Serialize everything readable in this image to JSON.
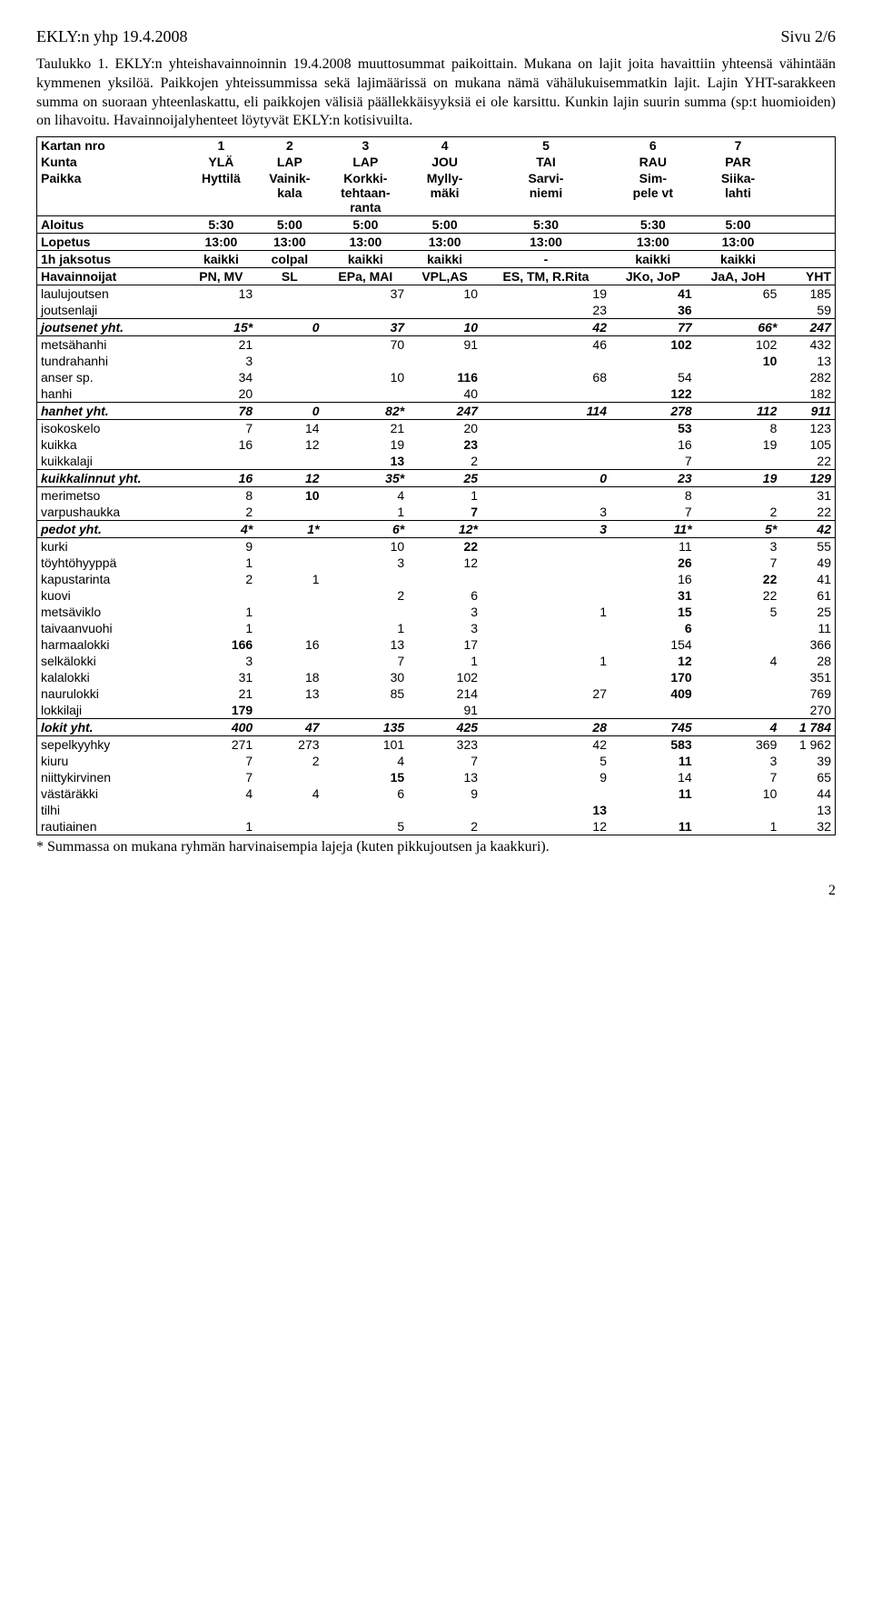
{
  "header": {
    "left": "EKLY:n yhp 19.4.2008",
    "right": "Sivu 2/6"
  },
  "caption": "Taulukko 1. EKLY:n yhteishavainnoinnin 19.4.2008 muuttosummat paikoittain. Mukana on lajit joita havaittiin yhteensä vähintään kymmenen yksilöä. Paikkojen yhteissummissa sekä lajimäärissä on mukana nämä vähälukuisemmatkin lajit. Lajin YHT-sarakkeen summa on suoraan yhteenlaskattu, eli paikkojen välisiä päällekkäisyyksiä ei ole karsittu. Kunkin lajin suurin summa (sp:t huomioiden) on lihavoitu. Havainnoijalyhenteet löytyvät EKLY:n kotisivuilta.",
  "rows": {
    "kartan": {
      "label": "Kartan nro",
      "v": [
        "1",
        "2",
        "3",
        "4",
        "5",
        "6",
        "7"
      ]
    },
    "kunta": {
      "label": "Kunta",
      "v": [
        "YLÄ",
        "LAP",
        "LAP",
        "JOU",
        "TAI",
        "RAU",
        "PAR"
      ]
    },
    "paikka": {
      "label": "Paikka",
      "v": [
        "Hyttilä",
        "Vainik-\nkala",
        "Korkki-\ntehtaan-\nranta",
        "Mylly-\nmäki",
        "Sarvi-\nniemi",
        "Sim-\npele vt",
        "Siika-\nlahti"
      ]
    },
    "aloitus": {
      "label": "Aloitus",
      "v": [
        "5:30",
        "5:00",
        "5:00",
        "5:00",
        "5:30",
        "5:30",
        "5:00"
      ]
    },
    "lopetus": {
      "label": "Lopetus",
      "v": [
        "13:00",
        "13:00",
        "13:00",
        "13:00",
        "13:00",
        "13:00",
        "13:00"
      ]
    },
    "jaksotus": {
      "label": "1h jaksotus",
      "v": [
        "kaikki",
        "colpal",
        "kaikki",
        "kaikki",
        "-",
        "kaikki",
        "kaikki"
      ]
    },
    "hav": {
      "label": "Havainnoijat",
      "v": [
        "PN, MV",
        "SL",
        "EPa, MAI",
        "VPL,AS",
        "ES, TM, R.Rita",
        "JKo, JoP",
        "JaA, JoH"
      ],
      "yht": "YHT"
    }
  },
  "data": [
    {
      "l": "laulujoutsen",
      "b": 5,
      "v": [
        "13",
        "",
        "37",
        "10",
        "19",
        "41",
        "65"
      ],
      "y": "185"
    },
    {
      "l": "joutsenlaji",
      "b": 5,
      "v": [
        "",
        "",
        "",
        "",
        "23",
        "36",
        ""
      ],
      "y": "59"
    },
    {
      "l": "joutsenet yht.",
      "sum": true,
      "v": [
        "15*",
        "0",
        "37",
        "10",
        "42",
        "77",
        "66*"
      ],
      "y": "247"
    },
    {
      "l": "metsähanhi",
      "b": 5,
      "v": [
        "21",
        "",
        "70",
        "91",
        "46",
        "102",
        "102"
      ],
      "y": "432"
    },
    {
      "l": "tundrahanhi",
      "b": 6,
      "v": [
        "3",
        "",
        "",
        "",
        "",
        "",
        "10"
      ],
      "y": "13"
    },
    {
      "l": "anser sp.",
      "b": 3,
      "v": [
        "34",
        "",
        "10",
        "116",
        "68",
        "54",
        ""
      ],
      "y": "282"
    },
    {
      "l": "hanhi",
      "b": 5,
      "v": [
        "20",
        "",
        "",
        "40",
        "",
        "122",
        ""
      ],
      "y": "182"
    },
    {
      "l": "hanhet yht.",
      "sum": true,
      "v": [
        "78",
        "0",
        "82*",
        "247",
        "114",
        "278",
        "112"
      ],
      "y": "911"
    },
    {
      "l": "isokoskelo",
      "b": 5,
      "v": [
        "7",
        "14",
        "21",
        "20",
        "",
        "53",
        "8"
      ],
      "y": "123"
    },
    {
      "l": "kuikka",
      "b": 3,
      "v": [
        "16",
        "12",
        "19",
        "23",
        "",
        "16",
        "19"
      ],
      "y": "105"
    },
    {
      "l": "kuikkalaji",
      "b": 2,
      "v": [
        "",
        "",
        "13",
        "2",
        "",
        "7",
        ""
      ],
      "y": "22"
    },
    {
      "l": "kuikkalinnut yht.",
      "sum": true,
      "v": [
        "16",
        "12",
        "35*",
        "25",
        "0",
        "23",
        "19"
      ],
      "y": "129"
    },
    {
      "l": "merimetso",
      "b": 1,
      "v": [
        "8",
        "10",
        "4",
        "1",
        "",
        "8",
        ""
      ],
      "y": "31"
    },
    {
      "l": "varpushaukka",
      "b": 3,
      "v": [
        "2",
        "",
        "1",
        "7",
        "3",
        "7",
        "2"
      ],
      "y": "22"
    },
    {
      "l": "pedot yht.",
      "sum": true,
      "v": [
        "4*",
        "1*",
        "6*",
        "12*",
        "3",
        "11*",
        "5*"
      ],
      "y": "42"
    },
    {
      "l": "kurki",
      "b": 3,
      "v": [
        "9",
        "",
        "10",
        "22",
        "",
        "11",
        "3"
      ],
      "y": "55"
    },
    {
      "l": "töyhtöhyyppä",
      "b": 5,
      "v": [
        "1",
        "",
        "3",
        "12",
        "",
        "26",
        "7"
      ],
      "y": "49"
    },
    {
      "l": "kapustarinta",
      "b": 6,
      "v": [
        "2",
        "1",
        "",
        "",
        "",
        "16",
        "22"
      ],
      "y": "41"
    },
    {
      "l": "kuovi",
      "b": 5,
      "v": [
        "",
        "",
        "2",
        "6",
        "",
        "31",
        "22"
      ],
      "y": "61"
    },
    {
      "l": "metsäviklo",
      "b": 5,
      "v": [
        "1",
        "",
        "",
        "3",
        "1",
        "15",
        "5"
      ],
      "y": "25"
    },
    {
      "l": "taivaanvuohi",
      "b": 5,
      "v": [
        "1",
        "",
        "1",
        "3",
        "",
        "6",
        ""
      ],
      "y": "11"
    },
    {
      "l": "harmaalokki",
      "b": 0,
      "v": [
        "166",
        "16",
        "13",
        "17",
        "",
        "154",
        ""
      ],
      "y": "366"
    },
    {
      "l": "selkälokki",
      "b": 5,
      "v": [
        "3",
        "",
        "7",
        "1",
        "1",
        "12",
        "4"
      ],
      "y": "28"
    },
    {
      "l": "kalalokki",
      "b": 5,
      "v": [
        "31",
        "18",
        "30",
        "102",
        "",
        "170",
        ""
      ],
      "y": "351"
    },
    {
      "l": "naurulokki",
      "b": 5,
      "v": [
        "21",
        "13",
        "85",
        "214",
        "27",
        "409",
        ""
      ],
      "y": "769"
    },
    {
      "l": "lokkilaji",
      "b": 0,
      "v": [
        "179",
        "",
        "",
        "91",
        "",
        "",
        ""
      ],
      "y": "270"
    },
    {
      "l": "lokit yht.",
      "sum": true,
      "v": [
        "400",
        "47",
        "135",
        "425",
        "28",
        "745",
        "4"
      ],
      "y": "1 784"
    },
    {
      "l": "sepelkyyhky",
      "b": 5,
      "v": [
        "271",
        "273",
        "101",
        "323",
        "42",
        "583",
        "369"
      ],
      "y": "1 962"
    },
    {
      "l": "kiuru",
      "b": 5,
      "v": [
        "7",
        "2",
        "4",
        "7",
        "5",
        "11",
        "3"
      ],
      "y": "39"
    },
    {
      "l": "niittykirvinen",
      "b": 2,
      "v": [
        "7",
        "",
        "15",
        "13",
        "9",
        "14",
        "7"
      ],
      "y": "65"
    },
    {
      "l": "västäräkki",
      "b": 5,
      "v": [
        "4",
        "4",
        "6",
        "9",
        "",
        "11",
        "10"
      ],
      "y": "44"
    },
    {
      "l": "tilhi",
      "b": 4,
      "v": [
        "",
        "",
        "",
        "",
        "13",
        "",
        ""
      ],
      "y": "13"
    },
    {
      "l": "rautiainen",
      "b": 5,
      "v": [
        "1",
        "",
        "5",
        "2",
        "12",
        "11",
        "1"
      ],
      "y": "32"
    }
  ],
  "footnote": "* Summassa on mukana ryhmän harvinaisempia lajeja (kuten pikkujoutsen ja kaakkuri).",
  "pagenum": "2"
}
